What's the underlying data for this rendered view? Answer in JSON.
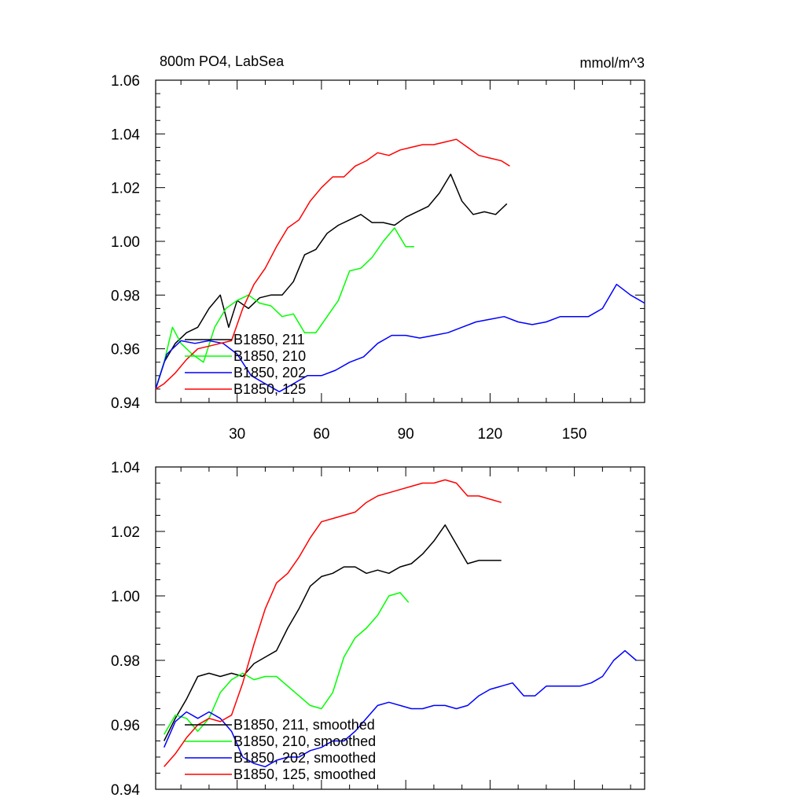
{
  "chart_data": [
    {
      "type": "line",
      "title": "800m PO4, LabSea",
      "units": "mmol/m^3",
      "xlim": [
        1,
        175
      ],
      "ylim": [
        0.94,
        1.06
      ],
      "xticks": [
        30,
        60,
        90,
        120,
        150
      ],
      "yticks": [
        0.94,
        0.96,
        0.98,
        1.0,
        1.02,
        1.04,
        1.06
      ],
      "ytick_labels": [
        "0.94",
        "0.96",
        "0.98",
        "1.00",
        "1.02",
        "1.04",
        "1.06"
      ],
      "xtick_labels": [
        "30",
        "60",
        "90",
        "120",
        "150"
      ],
      "legend_position": "bottom-left",
      "series": [
        {
          "name": "B1850, 211",
          "color": "#000000",
          "x": [
            1,
            4,
            8,
            12,
            16,
            20,
            24,
            27,
            30,
            34,
            38,
            42,
            46,
            50,
            54,
            58,
            62,
            66,
            70,
            74,
            78,
            82,
            86,
            90,
            94,
            98,
            102,
            106,
            110,
            114,
            118,
            122,
            126
          ],
          "y": [
            0.945,
            0.955,
            0.962,
            0.966,
            0.968,
            0.975,
            0.98,
            0.968,
            0.978,
            0.975,
            0.979,
            0.98,
            0.98,
            0.985,
            0.995,
            0.997,
            1.003,
            1.006,
            1.008,
            1.01,
            1.007,
            1.007,
            1.006,
            1.009,
            1.011,
            1.013,
            1.018,
            1.025,
            1.015,
            1.01,
            1.011,
            1.01,
            1.014
          ]
        },
        {
          "name": "B1850, 210",
          "color": "#00ff00",
          "x": [
            1,
            4,
            7,
            10,
            14,
            18,
            22,
            26,
            30,
            34,
            38,
            42,
            46,
            50,
            54,
            58,
            62,
            66,
            70,
            74,
            78,
            82,
            86,
            90,
            93
          ],
          "y": [
            0.945,
            0.955,
            0.968,
            0.962,
            0.958,
            0.955,
            0.968,
            0.975,
            0.978,
            0.98,
            0.977,
            0.976,
            0.972,
            0.973,
            0.966,
            0.966,
            0.972,
            0.978,
            0.989,
            0.99,
            0.994,
            1.0,
            1.005,
            0.998,
            0.998
          ]
        },
        {
          "name": "B1850, 202",
          "color": "#0000ff",
          "x": [
            1,
            5,
            10,
            15,
            20,
            25,
            30,
            35,
            40,
            45,
            50,
            55,
            60,
            65,
            70,
            75,
            80,
            85,
            90,
            95,
            100,
            105,
            110,
            115,
            120,
            125,
            130,
            135,
            140,
            145,
            150,
            155,
            160,
            165,
            170,
            175
          ],
          "y": [
            0.945,
            0.958,
            0.963,
            0.962,
            0.963,
            0.962,
            0.958,
            0.95,
            0.947,
            0.944,
            0.947,
            0.95,
            0.95,
            0.952,
            0.955,
            0.957,
            0.962,
            0.965,
            0.965,
            0.964,
            0.965,
            0.966,
            0.968,
            0.97,
            0.971,
            0.972,
            0.97,
            0.969,
            0.97,
            0.972,
            0.972,
            0.972,
            0.975,
            0.984,
            0.98,
            0.977
          ]
        },
        {
          "name": "B1850, 125",
          "color": "#ff0000",
          "x": [
            1,
            4,
            8,
            12,
            16,
            20,
            24,
            28,
            32,
            36,
            40,
            44,
            48,
            52,
            56,
            60,
            64,
            68,
            72,
            76,
            80,
            84,
            88,
            92,
            96,
            100,
            104,
            108,
            112,
            116,
            120,
            124,
            127
          ],
          "y": [
            0.945,
            0.947,
            0.951,
            0.956,
            0.96,
            0.961,
            0.962,
            0.963,
            0.975,
            0.984,
            0.99,
            0.998,
            1.005,
            1.008,
            1.015,
            1.02,
            1.024,
            1.024,
            1.028,
            1.03,
            1.033,
            1.032,
            1.034,
            1.035,
            1.036,
            1.036,
            1.037,
            1.038,
            1.035,
            1.032,
            1.031,
            1.03,
            1.028
          ]
        }
      ]
    },
    {
      "type": "line",
      "xlim": [
        1,
        175
      ],
      "ylim": [
        0.94,
        1.04
      ],
      "yticks": [
        0.94,
        0.96,
        0.98,
        1.0,
        1.02,
        1.04
      ],
      "ytick_labels": [
        "0.94",
        "0.96",
        "0.98",
        "1.00",
        "1.02",
        "1.04"
      ],
      "legend_position": "bottom-left",
      "series": [
        {
          "name": "B1850, 211, smoothed",
          "color": "#000000",
          "x": [
            4,
            8,
            12,
            16,
            20,
            24,
            28,
            32,
            36,
            40,
            44,
            48,
            52,
            56,
            60,
            64,
            68,
            72,
            76,
            80,
            84,
            88,
            92,
            96,
            100,
            104,
            108,
            112,
            116,
            120,
            124
          ],
          "y": [
            0.955,
            0.962,
            0.968,
            0.975,
            0.976,
            0.975,
            0.976,
            0.975,
            0.979,
            0.981,
            0.983,
            0.99,
            0.996,
            1.003,
            1.006,
            1.007,
            1.009,
            1.009,
            1.007,
            1.008,
            1.007,
            1.009,
            1.01,
            1.013,
            1.017,
            1.022,
            1.016,
            1.01,
            1.011,
            1.011,
            1.011
          ]
        },
        {
          "name": "B1850, 210, smoothed",
          "color": "#00ff00",
          "x": [
            4,
            8,
            12,
            16,
            20,
            24,
            28,
            32,
            36,
            40,
            44,
            48,
            52,
            56,
            60,
            64,
            68,
            72,
            76,
            80,
            84,
            88,
            91
          ],
          "y": [
            0.957,
            0.963,
            0.962,
            0.958,
            0.962,
            0.97,
            0.974,
            0.976,
            0.974,
            0.975,
            0.975,
            0.972,
            0.969,
            0.966,
            0.965,
            0.97,
            0.981,
            0.987,
            0.99,
            0.994,
            1.0,
            1.001,
            0.998
          ]
        },
        {
          "name": "B1850, 202, smoothed",
          "color": "#0000ff",
          "x": [
            4,
            8,
            12,
            16,
            20,
            24,
            28,
            32,
            36,
            40,
            44,
            48,
            52,
            56,
            60,
            64,
            68,
            72,
            76,
            80,
            84,
            88,
            92,
            96,
            100,
            104,
            108,
            112,
            116,
            120,
            124,
            128,
            132,
            136,
            140,
            144,
            148,
            152,
            156,
            160,
            164,
            168,
            172
          ],
          "y": [
            0.953,
            0.961,
            0.964,
            0.962,
            0.964,
            0.962,
            0.958,
            0.95,
            0.948,
            0.947,
            0.949,
            0.95,
            0.95,
            0.952,
            0.953,
            0.955,
            0.955,
            0.958,
            0.962,
            0.966,
            0.967,
            0.966,
            0.965,
            0.965,
            0.966,
            0.966,
            0.965,
            0.966,
            0.969,
            0.971,
            0.972,
            0.973,
            0.969,
            0.969,
            0.972,
            0.972,
            0.972,
            0.972,
            0.973,
            0.975,
            0.98,
            0.983,
            0.98
          ]
        },
        {
          "name": "B1850, 125, smoothed",
          "color": "#ff0000",
          "x": [
            4,
            8,
            12,
            16,
            20,
            24,
            28,
            32,
            36,
            40,
            44,
            48,
            52,
            56,
            60,
            64,
            68,
            72,
            76,
            80,
            84,
            88,
            92,
            96,
            100,
            104,
            108,
            112,
            116,
            120,
            124
          ],
          "y": [
            0.947,
            0.951,
            0.956,
            0.96,
            0.962,
            0.961,
            0.963,
            0.973,
            0.985,
            0.996,
            1.004,
            1.007,
            1.012,
            1.018,
            1.023,
            1.024,
            1.025,
            1.026,
            1.029,
            1.031,
            1.032,
            1.033,
            1.034,
            1.035,
            1.035,
            1.036,
            1.035,
            1.031,
            1.031,
            1.03,
            1.029
          ]
        }
      ]
    }
  ]
}
